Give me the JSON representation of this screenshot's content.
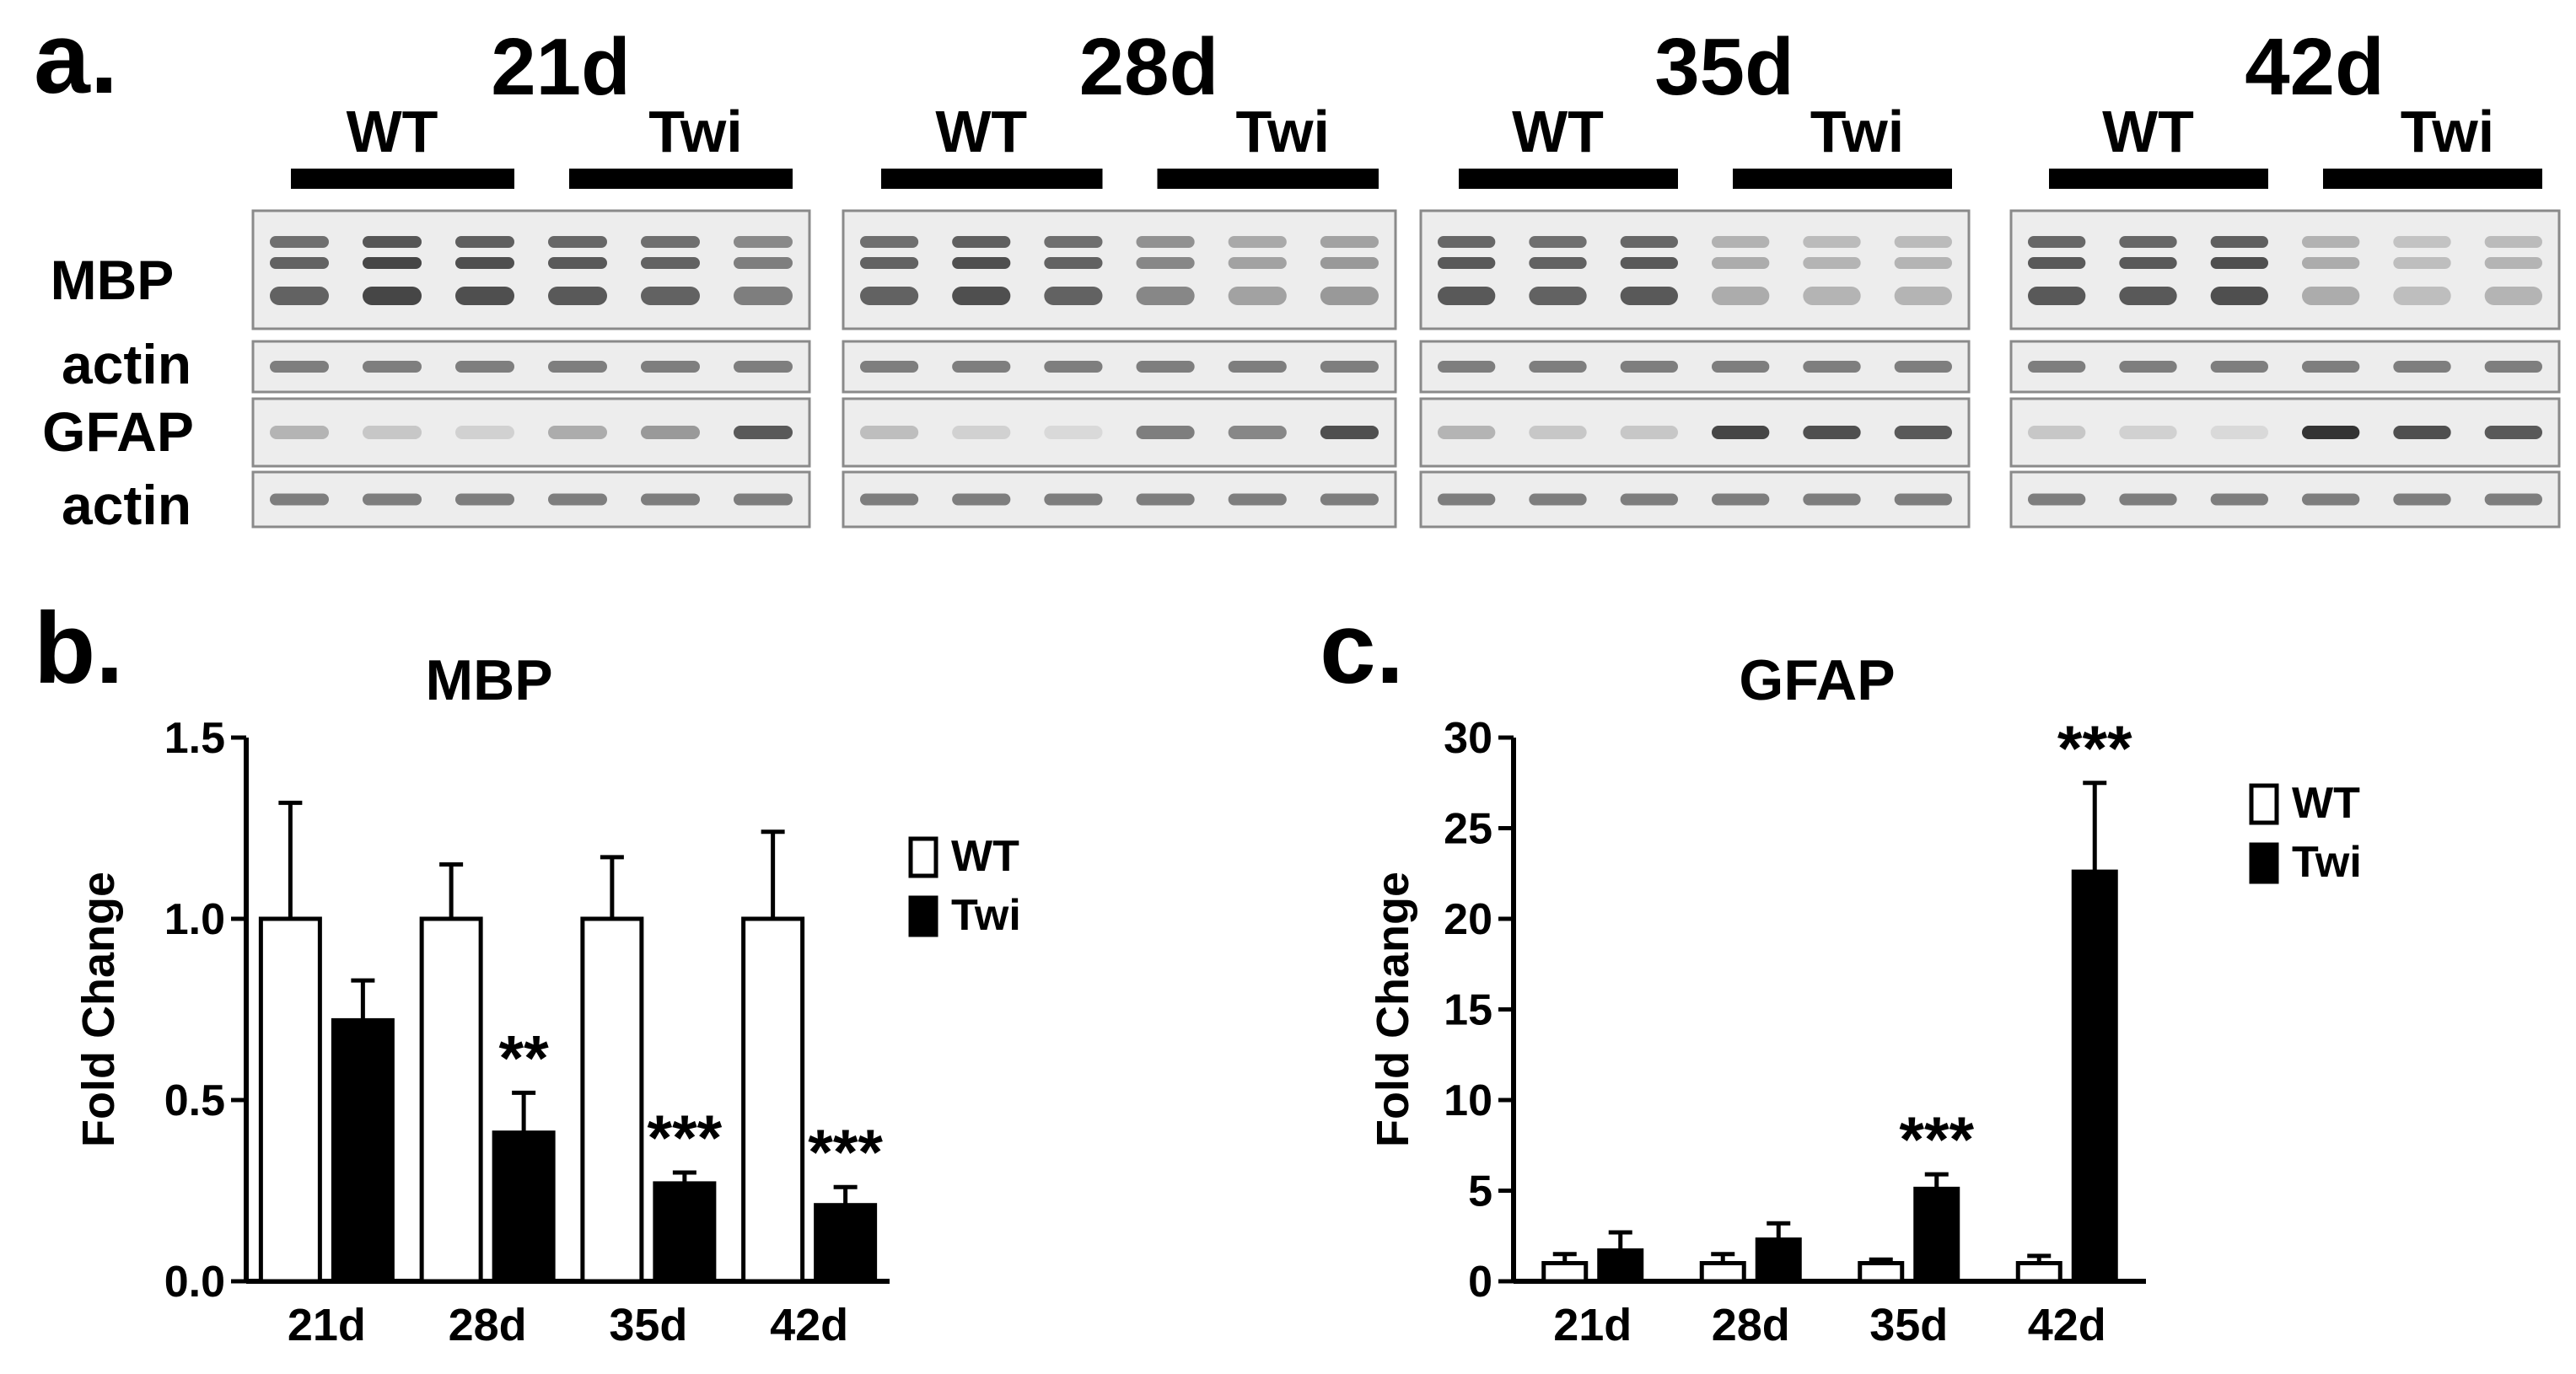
{
  "panels": {
    "a": "a.",
    "b": "b.",
    "c": "c."
  },
  "blots": {
    "timepoints": [
      "21d",
      "28d",
      "35d",
      "42d"
    ],
    "groups": [
      "WT",
      "Twi"
    ],
    "row_labels": [
      "MBP",
      "actin",
      "GFAP",
      "actin"
    ],
    "colors": {
      "band": "#333333",
      "membrane": "#ededed",
      "frame": "#8a8a8a"
    }
  },
  "chart_data": [
    {
      "type": "bar",
      "title": "MBP",
      "xlabel": "",
      "ylabel": "Fold Change",
      "categories": [
        "21d",
        "28d",
        "35d",
        "42d"
      ],
      "ylim": [
        0,
        1.5
      ],
      "yticks": [
        "0.0",
        "0.5",
        "1.0",
        "1.5"
      ],
      "series": [
        {
          "name": "WT",
          "values": [
            1.0,
            1.0,
            1.0,
            1.0
          ],
          "errors": [
            0.32,
            0.15,
            0.17,
            0.24
          ],
          "color": "#ffffff"
        },
        {
          "name": "Twi",
          "values": [
            0.72,
            0.41,
            0.27,
            0.21
          ],
          "errors": [
            0.11,
            0.11,
            0.03,
            0.05
          ],
          "color": "#000000"
        }
      ],
      "annotations": [
        "",
        "**",
        "***",
        "***"
      ],
      "legend": "right"
    },
    {
      "type": "bar",
      "title": "GFAP",
      "xlabel": "",
      "ylabel": "Fold Change",
      "categories": [
        "21d",
        "28d",
        "35d",
        "42d"
      ],
      "ylim": [
        0,
        30
      ],
      "yticks": [
        "0",
        "5",
        "10",
        "15",
        "20",
        "25",
        "30"
      ],
      "series": [
        {
          "name": "WT",
          "values": [
            1.0,
            1.0,
            1.0,
            1.0
          ],
          "errors": [
            0.5,
            0.5,
            0.2,
            0.4
          ],
          "color": "#ffffff"
        },
        {
          "name": "Twi",
          "values": [
            1.7,
            2.3,
            5.1,
            22.6
          ],
          "errors": [
            1.0,
            0.9,
            0.8,
            4.9
          ],
          "color": "#000000"
        }
      ],
      "annotations": [
        "",
        "",
        "***",
        "***"
      ],
      "legend": "right"
    }
  ]
}
